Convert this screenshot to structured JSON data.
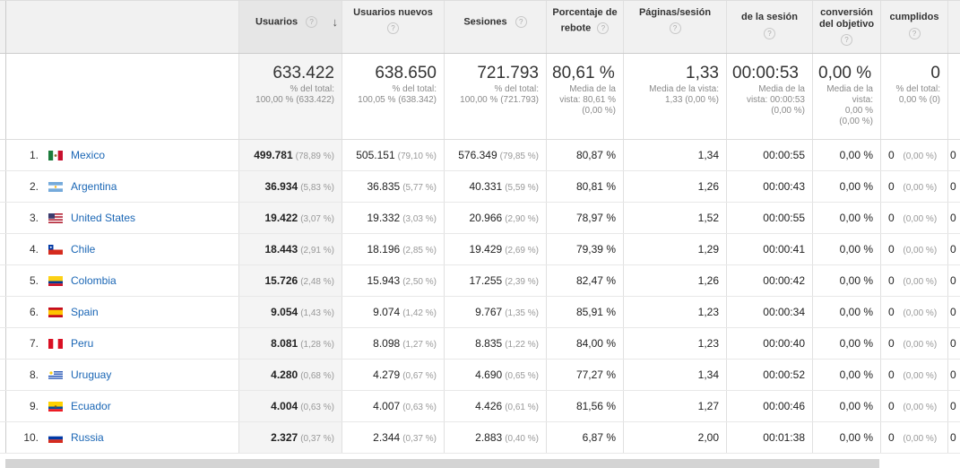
{
  "columns": {
    "users": "Usuarios",
    "new_users": "Usuarios nuevos",
    "sessions": "Sesiones",
    "bounce": [
      "Porcentaje de",
      "rebote"
    ],
    "pages": "Páginas/sesión",
    "duration": "de la sesión",
    "conversion": [
      "conversión",
      "del objetivo"
    ],
    "goals": "cumplidos",
    "help": "?",
    "sort_arrow": "↓"
  },
  "totals": {
    "users": {
      "value": "633.422",
      "sub": [
        "% del total:",
        "100,00 % (633.422)"
      ]
    },
    "new_users": {
      "value": "638.650",
      "sub": [
        "% del total:",
        "100,05 % (638.342)"
      ]
    },
    "sessions": {
      "value": "721.793",
      "sub": [
        "% del total:",
        "100,00 % (721.793)"
      ]
    },
    "bounce": {
      "value": "80,61 %",
      "sub": [
        "Media de la",
        "vista: 80,61 %",
        "(0,00 %)"
      ]
    },
    "pages": {
      "value": "1,33",
      "sub": [
        "Media de la vista:",
        "1,33 (0,00 %)"
      ]
    },
    "duration": {
      "value": "00:00:53",
      "sub": [
        "Media de la",
        "vista: 00:00:53",
        "(0,00 %)"
      ]
    },
    "conversion": {
      "value": "0,00 %",
      "sub": [
        "Media de la",
        "vista:",
        "0,00 %",
        "(0,00 %)"
      ]
    },
    "goals": {
      "value": "0",
      "sub": [
        "% del total:",
        "0,00 % (0)"
      ]
    }
  },
  "rows": [
    {
      "rank": "1.",
      "country": "Mexico",
      "flag": "mx",
      "users": "499.781",
      "users_pct": "(78,89 %)",
      "new_users": "505.151",
      "new_pct": "(79,10 %)",
      "sessions": "576.349",
      "sess_pct": "(79,85 %)",
      "bounce": "80,87 %",
      "pages": "1,34",
      "duration": "00:00:55",
      "conv": "0,00 %",
      "goals": "0",
      "goals_pct": "(0,00 %)",
      "last": "0"
    },
    {
      "rank": "2.",
      "country": "Argentina",
      "flag": "ar",
      "users": "36.934",
      "users_pct": "(5,83 %)",
      "new_users": "36.835",
      "new_pct": "(5,77 %)",
      "sessions": "40.331",
      "sess_pct": "(5,59 %)",
      "bounce": "80,81 %",
      "pages": "1,26",
      "duration": "00:00:43",
      "conv": "0,00 %",
      "goals": "0",
      "goals_pct": "(0,00 %)",
      "last": "0"
    },
    {
      "rank": "3.",
      "country": "United States",
      "flag": "us",
      "users": "19.422",
      "users_pct": "(3,07 %)",
      "new_users": "19.332",
      "new_pct": "(3,03 %)",
      "sessions": "20.966",
      "sess_pct": "(2,90 %)",
      "bounce": "78,97 %",
      "pages": "1,52",
      "duration": "00:00:55",
      "conv": "0,00 %",
      "goals": "0",
      "goals_pct": "(0,00 %)",
      "last": "0"
    },
    {
      "rank": "4.",
      "country": "Chile",
      "flag": "cl",
      "users": "18.443",
      "users_pct": "(2,91 %)",
      "new_users": "18.196",
      "new_pct": "(2,85 %)",
      "sessions": "19.429",
      "sess_pct": "(2,69 %)",
      "bounce": "79,39 %",
      "pages": "1,29",
      "duration": "00:00:41",
      "conv": "0,00 %",
      "goals": "0",
      "goals_pct": "(0,00 %)",
      "last": "0"
    },
    {
      "rank": "5.",
      "country": "Colombia",
      "flag": "co",
      "users": "15.726",
      "users_pct": "(2,48 %)",
      "new_users": "15.943",
      "new_pct": "(2,50 %)",
      "sessions": "17.255",
      "sess_pct": "(2,39 %)",
      "bounce": "82,47 %",
      "pages": "1,26",
      "duration": "00:00:42",
      "conv": "0,00 %",
      "goals": "0",
      "goals_pct": "(0,00 %)",
      "last": "0"
    },
    {
      "rank": "6.",
      "country": "Spain",
      "flag": "es",
      "users": "9.054",
      "users_pct": "(1,43 %)",
      "new_users": "9.074",
      "new_pct": "(1,42 %)",
      "sessions": "9.767",
      "sess_pct": "(1,35 %)",
      "bounce": "85,91 %",
      "pages": "1,23",
      "duration": "00:00:34",
      "conv": "0,00 %",
      "goals": "0",
      "goals_pct": "(0,00 %)",
      "last": "0"
    },
    {
      "rank": "7.",
      "country": "Peru",
      "flag": "pe",
      "users": "8.081",
      "users_pct": "(1,28 %)",
      "new_users": "8.098",
      "new_pct": "(1,27 %)",
      "sessions": "8.835",
      "sess_pct": "(1,22 %)",
      "bounce": "84,00 %",
      "pages": "1,23",
      "duration": "00:00:40",
      "conv": "0,00 %",
      "goals": "0",
      "goals_pct": "(0,00 %)",
      "last": "0"
    },
    {
      "rank": "8.",
      "country": "Uruguay",
      "flag": "uy",
      "users": "4.280",
      "users_pct": "(0,68 %)",
      "new_users": "4.279",
      "new_pct": "(0,67 %)",
      "sessions": "4.690",
      "sess_pct": "(0,65 %)",
      "bounce": "77,27 %",
      "pages": "1,34",
      "duration": "00:00:52",
      "conv": "0,00 %",
      "goals": "0",
      "goals_pct": "(0,00 %)",
      "last": "0"
    },
    {
      "rank": "9.",
      "country": "Ecuador",
      "flag": "ec",
      "users": "4.004",
      "users_pct": "(0,63 %)",
      "new_users": "4.007",
      "new_pct": "(0,63 %)",
      "sessions": "4.426",
      "sess_pct": "(0,61 %)",
      "bounce": "81,56 %",
      "pages": "1,27",
      "duration": "00:00:46",
      "conv": "0,00 %",
      "goals": "0",
      "goals_pct": "(0,00 %)",
      "last": "0"
    },
    {
      "rank": "10.",
      "country": "Russia",
      "flag": "ru",
      "users": "2.327",
      "users_pct": "(0,37 %)",
      "new_users": "2.344",
      "new_pct": "(0,37 %)",
      "sessions": "2.883",
      "sess_pct": "(0,40 %)",
      "bounce": "6,87 %",
      "pages": "2,00",
      "duration": "00:01:38",
      "conv": "0,00 %",
      "goals": "0",
      "goals_pct": "(0,00 %)",
      "last": "0"
    }
  ],
  "colors": {
    "link": "#1a66b5",
    "header_bg": "#f1f1f1",
    "sorted_col_bg": "#f4f4f4"
  }
}
